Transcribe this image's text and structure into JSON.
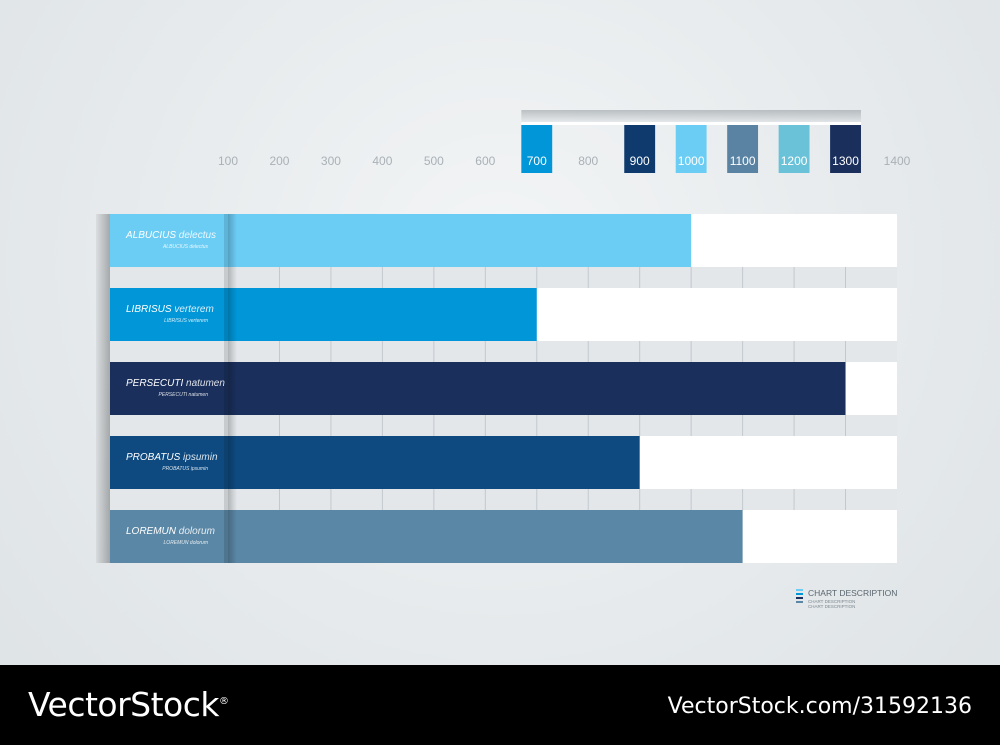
{
  "chart_data": {
    "type": "bar",
    "orientation": "horizontal",
    "x_ticks": [
      100,
      200,
      300,
      400,
      500,
      600,
      700,
      800,
      900,
      1000,
      1100,
      1200,
      1300,
      1400
    ],
    "xlim": [
      100,
      1400
    ],
    "highlighted_ticks": [
      {
        "value": 700,
        "color": "#0096d8"
      },
      {
        "value": 900,
        "color": "#0e3a6e"
      },
      {
        "value": 1000,
        "color": "#6ccdf4"
      },
      {
        "value": 1100,
        "color": "#5a83a3"
      },
      {
        "value": 1200,
        "color": "#6ac2d8"
      },
      {
        "value": 1300,
        "color": "#1a2f5c"
      }
    ],
    "bars": [
      {
        "label": "ALBUCIUS",
        "label_light": "delectus",
        "sublabel": "ALBUCIUS delectus",
        "value": 1000,
        "color": "#6ccdf4"
      },
      {
        "label": "LIBRISUS",
        "label_light": "verterem",
        "sublabel": "LIBRISUS verterem",
        "value": 700,
        "color": "#0096d8"
      },
      {
        "label": "PERSECUTI",
        "label_light": "natumen",
        "sublabel": "PERSECUTI natumen",
        "value": 1300,
        "color": "#1a2f5c"
      },
      {
        "label": "PROBATUS",
        "label_light": "ipsumin",
        "sublabel": "PROBATUS ipsumin",
        "value": 900,
        "color": "#0e4a80"
      },
      {
        "label": "LOREMUN",
        "label_light": "dolorum",
        "sublabel": "LOREMUN dolorum",
        "value": 1100,
        "color": "#5a87a6"
      }
    ],
    "grid": true
  },
  "legend": {
    "title": "CHART DESCRIPTION",
    "lines": [
      "CHART DESCRIPTION",
      "CHART DESCRIPTION"
    ],
    "colors": [
      "#6ccdf4",
      "#0096d8",
      "#1a2f5c",
      "#5a87a6"
    ]
  },
  "footer": {
    "brand": "VectorStock",
    "registered": "®",
    "url": "VectorStock.com/31592136"
  }
}
